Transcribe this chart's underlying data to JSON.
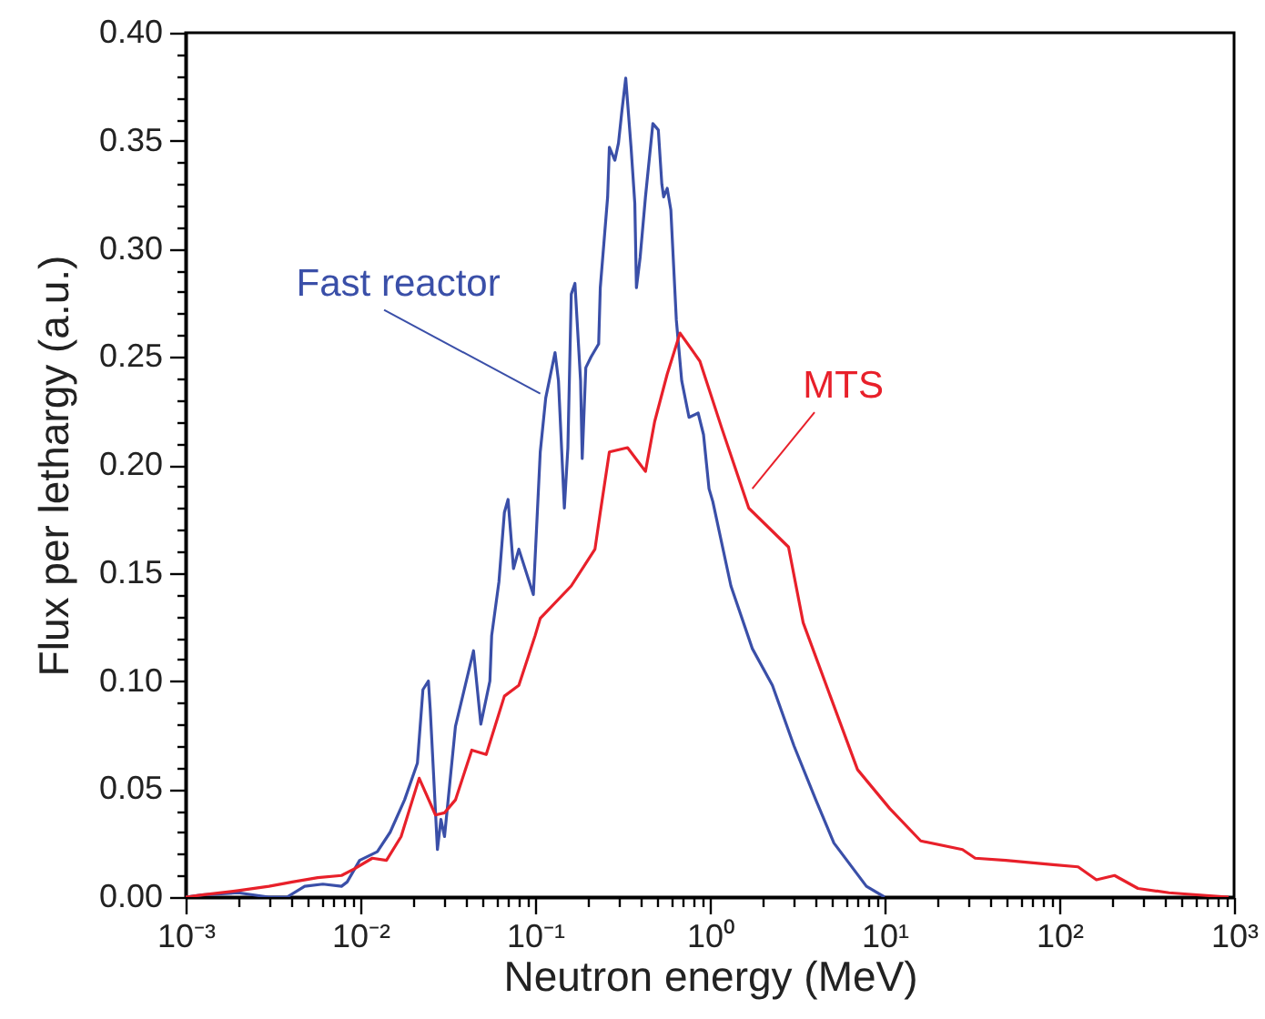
{
  "chart_data": {
    "type": "line",
    "xlabel": "Neutron energy (MeV)",
    "ylabel": "Flux per lethargy (a.u.)",
    "log": "x",
    "xlim": [
      0.001,
      1000
    ],
    "ylim": [
      0,
      0.4
    ],
    "xticks": [
      {
        "value": 0.001,
        "label": "10⁻³"
      },
      {
        "value": 0.002,
        "label": null
      },
      {
        "value": 0.003,
        "label": null
      },
      {
        "value": 0.004,
        "label": null
      },
      {
        "value": 0.005,
        "label": null
      },
      {
        "value": 0.006,
        "label": null
      },
      {
        "value": 0.007,
        "label": null
      },
      {
        "value": 0.008,
        "label": null
      },
      {
        "value": 0.009,
        "label": null
      },
      {
        "value": 0.01,
        "label": "10⁻²"
      },
      {
        "value": 0.02,
        "label": null
      },
      {
        "value": 0.03,
        "label": null
      },
      {
        "value": 0.04,
        "label": null
      },
      {
        "value": 0.05,
        "label": null
      },
      {
        "value": 0.06,
        "label": null
      },
      {
        "value": 0.07,
        "label": null
      },
      {
        "value": 0.08,
        "label": null
      },
      {
        "value": 0.09,
        "label": null
      },
      {
        "value": 0.1,
        "label": "10⁻¹"
      },
      {
        "value": 0.2,
        "label": null
      },
      {
        "value": 0.3,
        "label": null
      },
      {
        "value": 0.4,
        "label": null
      },
      {
        "value": 0.5,
        "label": null
      },
      {
        "value": 0.6,
        "label": null
      },
      {
        "value": 0.7,
        "label": null
      },
      {
        "value": 0.8,
        "label": null
      },
      {
        "value": 0.9,
        "label": null
      },
      {
        "value": 1,
        "label": "10⁰"
      },
      {
        "value": 2,
        "label": null
      },
      {
        "value": 3,
        "label": null
      },
      {
        "value": 4,
        "label": null
      },
      {
        "value": 5,
        "label": null
      },
      {
        "value": 6,
        "label": null
      },
      {
        "value": 7,
        "label": null
      },
      {
        "value": 8,
        "label": null
      },
      {
        "value": 9,
        "label": null
      },
      {
        "value": 10,
        "label": "10¹"
      },
      {
        "value": 20,
        "label": null
      },
      {
        "value": 30,
        "label": null
      },
      {
        "value": 40,
        "label": null
      },
      {
        "value": 50,
        "label": null
      },
      {
        "value": 60,
        "label": null
      },
      {
        "value": 70,
        "label": null
      },
      {
        "value": 80,
        "label": null
      },
      {
        "value": 90,
        "label": null
      },
      {
        "value": 100,
        "label": "10²"
      },
      {
        "value": 200,
        "label": null
      },
      {
        "value": 300,
        "label": null
      },
      {
        "value": 400,
        "label": null
      },
      {
        "value": 500,
        "label": null
      },
      {
        "value": 600,
        "label": null
      },
      {
        "value": 700,
        "label": null
      },
      {
        "value": 800,
        "label": null
      },
      {
        "value": 900,
        "label": null
      },
      {
        "value": 1000,
        "label": "10³"
      }
    ],
    "yticks": [
      "0.00",
      {
        "value": 0.01,
        "label": null
      },
      {
        "value": 0.02,
        "label": null
      },
      {
        "value": 0.03,
        "label": null
      },
      {
        "value": 0.04,
        "label": null
      },
      {
        "value": 0.05,
        "label": "0.05"
      },
      {
        "value": 0.06,
        "label": null
      },
      {
        "value": 0.07,
        "label": null
      },
      {
        "value": 0.08,
        "label": null
      },
      {
        "value": 0.09,
        "label": null
      },
      {
        "value": 0.1,
        "label": "0.10"
      },
      {
        "value": 0.11,
        "label": null
      },
      {
        "value": 0.12,
        "label": null
      },
      {
        "value": 0.13,
        "label": null
      },
      {
        "value": 0.14,
        "label": null
      },
      {
        "value": 0.15,
        "label": "0.15"
      },
      {
        "value": 0.16,
        "label": null
      },
      {
        "value": 0.17,
        "label": null
      },
      {
        "value": 0.18,
        "label": null
      },
      {
        "value": 0.19,
        "label": null
      },
      {
        "value": 0.2,
        "label": "0.20"
      },
      {
        "value": 0.21,
        "label": null
      },
      {
        "value": 0.22,
        "label": null
      },
      {
        "value": 0.23,
        "label": null
      },
      {
        "value": 0.24,
        "label": null
      },
      {
        "value": 0.25,
        "label": "0.25"
      },
      {
        "value": 0.26,
        "label": null
      },
      {
        "value": 0.27,
        "label": null
      },
      {
        "value": 0.28,
        "label": null
      },
      {
        "value": 0.29,
        "label": null
      },
      {
        "value": 0.3,
        "label": "0.30"
      },
      {
        "value": 0.31,
        "label": null
      },
      {
        "value": 0.32,
        "label": null
      },
      {
        "value": 0.33,
        "label": null
      },
      {
        "value": 0.34,
        "label": null
      },
      {
        "value": 0.35,
        "label": "0.35"
      },
      {
        "value": 0.36,
        "label": null
      },
      {
        "value": 0.37,
        "label": null
      },
      {
        "value": 0.38,
        "label": null
      },
      {
        "value": 0.39,
        "label": null
      },
      {
        "value": 0.4,
        "label": "0.40"
      }
    ],
    "series": [
      {
        "color": "#3a4fa8",
        "x": [
          0.001,
          0.00124,
          0.002,
          0.003,
          0.0038,
          0.0048,
          0.0061,
          0.0078,
          0.0084,
          0.0099,
          0.0125,
          0.0148,
          0.0179,
          0.0212,
          0.0228,
          0.0245,
          0.0251,
          0.0276,
          0.0289,
          0.0303,
          0.035,
          0.0385,
          0.0444,
          0.0489,
          0.0551,
          0.0564,
          0.0621,
          0.0667,
          0.07,
          0.0752,
          0.0807,
          0.0977,
          0.107,
          0.115,
          0.127,
          0.13,
          0.136,
          0.147,
          0.154,
          0.161,
          0.169,
          0.182,
          0.186,
          0.195,
          0.209,
          0.231,
          0.236,
          0.26,
          0.266,
          0.286,
          0.3,
          0.314,
          0.33,
          0.354,
          0.372,
          0.38,
          0.399,
          0.428,
          0.472,
          0.507,
          0.531,
          0.544,
          0.57,
          0.598,
          0.643,
          0.69,
          0.76,
          0.857,
          0.92,
          0.989,
          1.04,
          1.32,
          1.75,
          2.28,
          3.03,
          4.04,
          5.13,
          7.87,
          10
        ],
        "values": [
          0,
          0.001,
          0.002,
          0,
          0,
          0.005,
          0.006,
          0.005,
          0.007,
          0.017,
          0.021,
          0.03,
          0.045,
          0.062,
          0.096,
          0.1,
          0.087,
          0.022,
          0.036,
          0.028,
          0.079,
          0.093,
          0.114,
          0.08,
          0.1,
          0.121,
          0.146,
          0.178,
          0.184,
          0.152,
          0.161,
          0.14,
          0.206,
          0.231,
          0.248,
          0.252,
          0.239,
          0.18,
          0.208,
          0.279,
          0.284,
          0.239,
          0.203,
          0.245,
          0.25,
          0.256,
          0.282,
          0.324,
          0.347,
          0.341,
          0.349,
          0.364,
          0.379,
          0.347,
          0.321,
          0.282,
          0.296,
          0.324,
          0.358,
          0.355,
          0.33,
          0.324,
          0.328,
          0.318,
          0.267,
          0.239,
          0.222,
          0.224,
          0.214,
          0.189,
          0.183,
          0.144,
          0.115,
          0.098,
          0.07,
          0.045,
          0.025,
          0.005,
          0
        ]
      },
      {
        "color": "#e8202a",
        "x": [
          0.001,
          0.00124,
          0.002,
          0.003,
          0.00408,
          0.0057,
          0.0078,
          0.0092,
          0.0117,
          0.0141,
          0.0171,
          0.0217,
          0.0269,
          0.0303,
          0.035,
          0.0434,
          0.0525,
          0.0667,
          0.0807,
          0.1,
          0.107,
          0.161,
          0.22,
          0.236,
          0.266,
          0.338,
          0.428,
          0.483,
          0.57,
          0.675,
          0.877,
          1.17,
          1.67,
          2.82,
          3.42,
          4.89,
          7,
          10.7,
          16.1,
          27.9,
          33,
          49.4,
          92,
          128,
          163,
          207,
          282,
          424,
          931
        ],
        "values": [
          0,
          0.001,
          0.003,
          0.005,
          0.007,
          0.009,
          0.01,
          0.013,
          0.018,
          0.017,
          0.028,
          0.055,
          0.038,
          0.039,
          0.045,
          0.068,
          0.066,
          0.093,
          0.098,
          0.121,
          0.129,
          0.144,
          0.161,
          0.178,
          0.206,
          0.208,
          0.197,
          0.22,
          0.242,
          0.261,
          0.248,
          0.217,
          0.18,
          0.162,
          0.127,
          0.093,
          0.059,
          0.041,
          0.026,
          0.022,
          0.018,
          0.017,
          0.015,
          0.014,
          0.008,
          0.01,
          0.004,
          0.002,
          0
        ]
      }
    ],
    "annotations": [
      {
        "text": "Fast reactor",
        "x": 0.107,
        "y": 0.233
      },
      {
        "text": "MTS",
        "x": 1.75,
        "y": 0.189
      }
    ]
  }
}
